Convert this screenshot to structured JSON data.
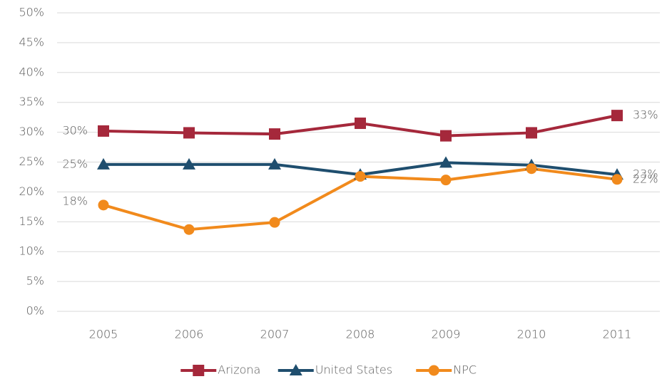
{
  "chart_data": {
    "type": "line",
    "categories": [
      "2005",
      "2006",
      "2007",
      "2008",
      "2009",
      "2010",
      "2011"
    ],
    "series": [
      {
        "name": "Arizona",
        "color": "#a5283b",
        "marker": "square",
        "values": [
          30.2,
          29.9,
          29.7,
          31.5,
          29.4,
          29.9,
          32.8
        ],
        "value_labels": [
          "30%",
          null,
          null,
          null,
          null,
          null,
          "33%"
        ]
      },
      {
        "name": "United States",
        "color": "#1f4e6e",
        "marker": "triangle",
        "values": [
          24.6,
          24.6,
          24.6,
          22.9,
          24.9,
          24.5,
          22.9
        ],
        "value_labels": [
          "25%",
          null,
          null,
          null,
          null,
          null,
          "23%"
        ]
      },
      {
        "name": "NPC",
        "color": "#f18a1c",
        "marker": "circle",
        "values": [
          17.8,
          13.7,
          14.9,
          22.6,
          22.0,
          23.9,
          22.1
        ],
        "value_labels": [
          "18%",
          null,
          null,
          null,
          null,
          null,
          "22%"
        ]
      }
    ],
    "ylim": [
      0,
      50
    ],
    "yticks": [
      {
        "value": 0,
        "label": "0%"
      },
      {
        "value": 5,
        "label": "5%"
      },
      {
        "value": 10,
        "label": "10%"
      },
      {
        "value": 15,
        "label": "15%"
      },
      {
        "value": 20,
        "label": "20%"
      },
      {
        "value": 25,
        "label": "25%"
      },
      {
        "value": 30,
        "label": "30%"
      },
      {
        "value": 35,
        "label": "35%"
      },
      {
        "value": 40,
        "label": "40%"
      },
      {
        "value": 45,
        "label": "45%"
      },
      {
        "value": 50,
        "label": "50%"
      }
    ],
    "grid": true,
    "legend": "bottom"
  }
}
